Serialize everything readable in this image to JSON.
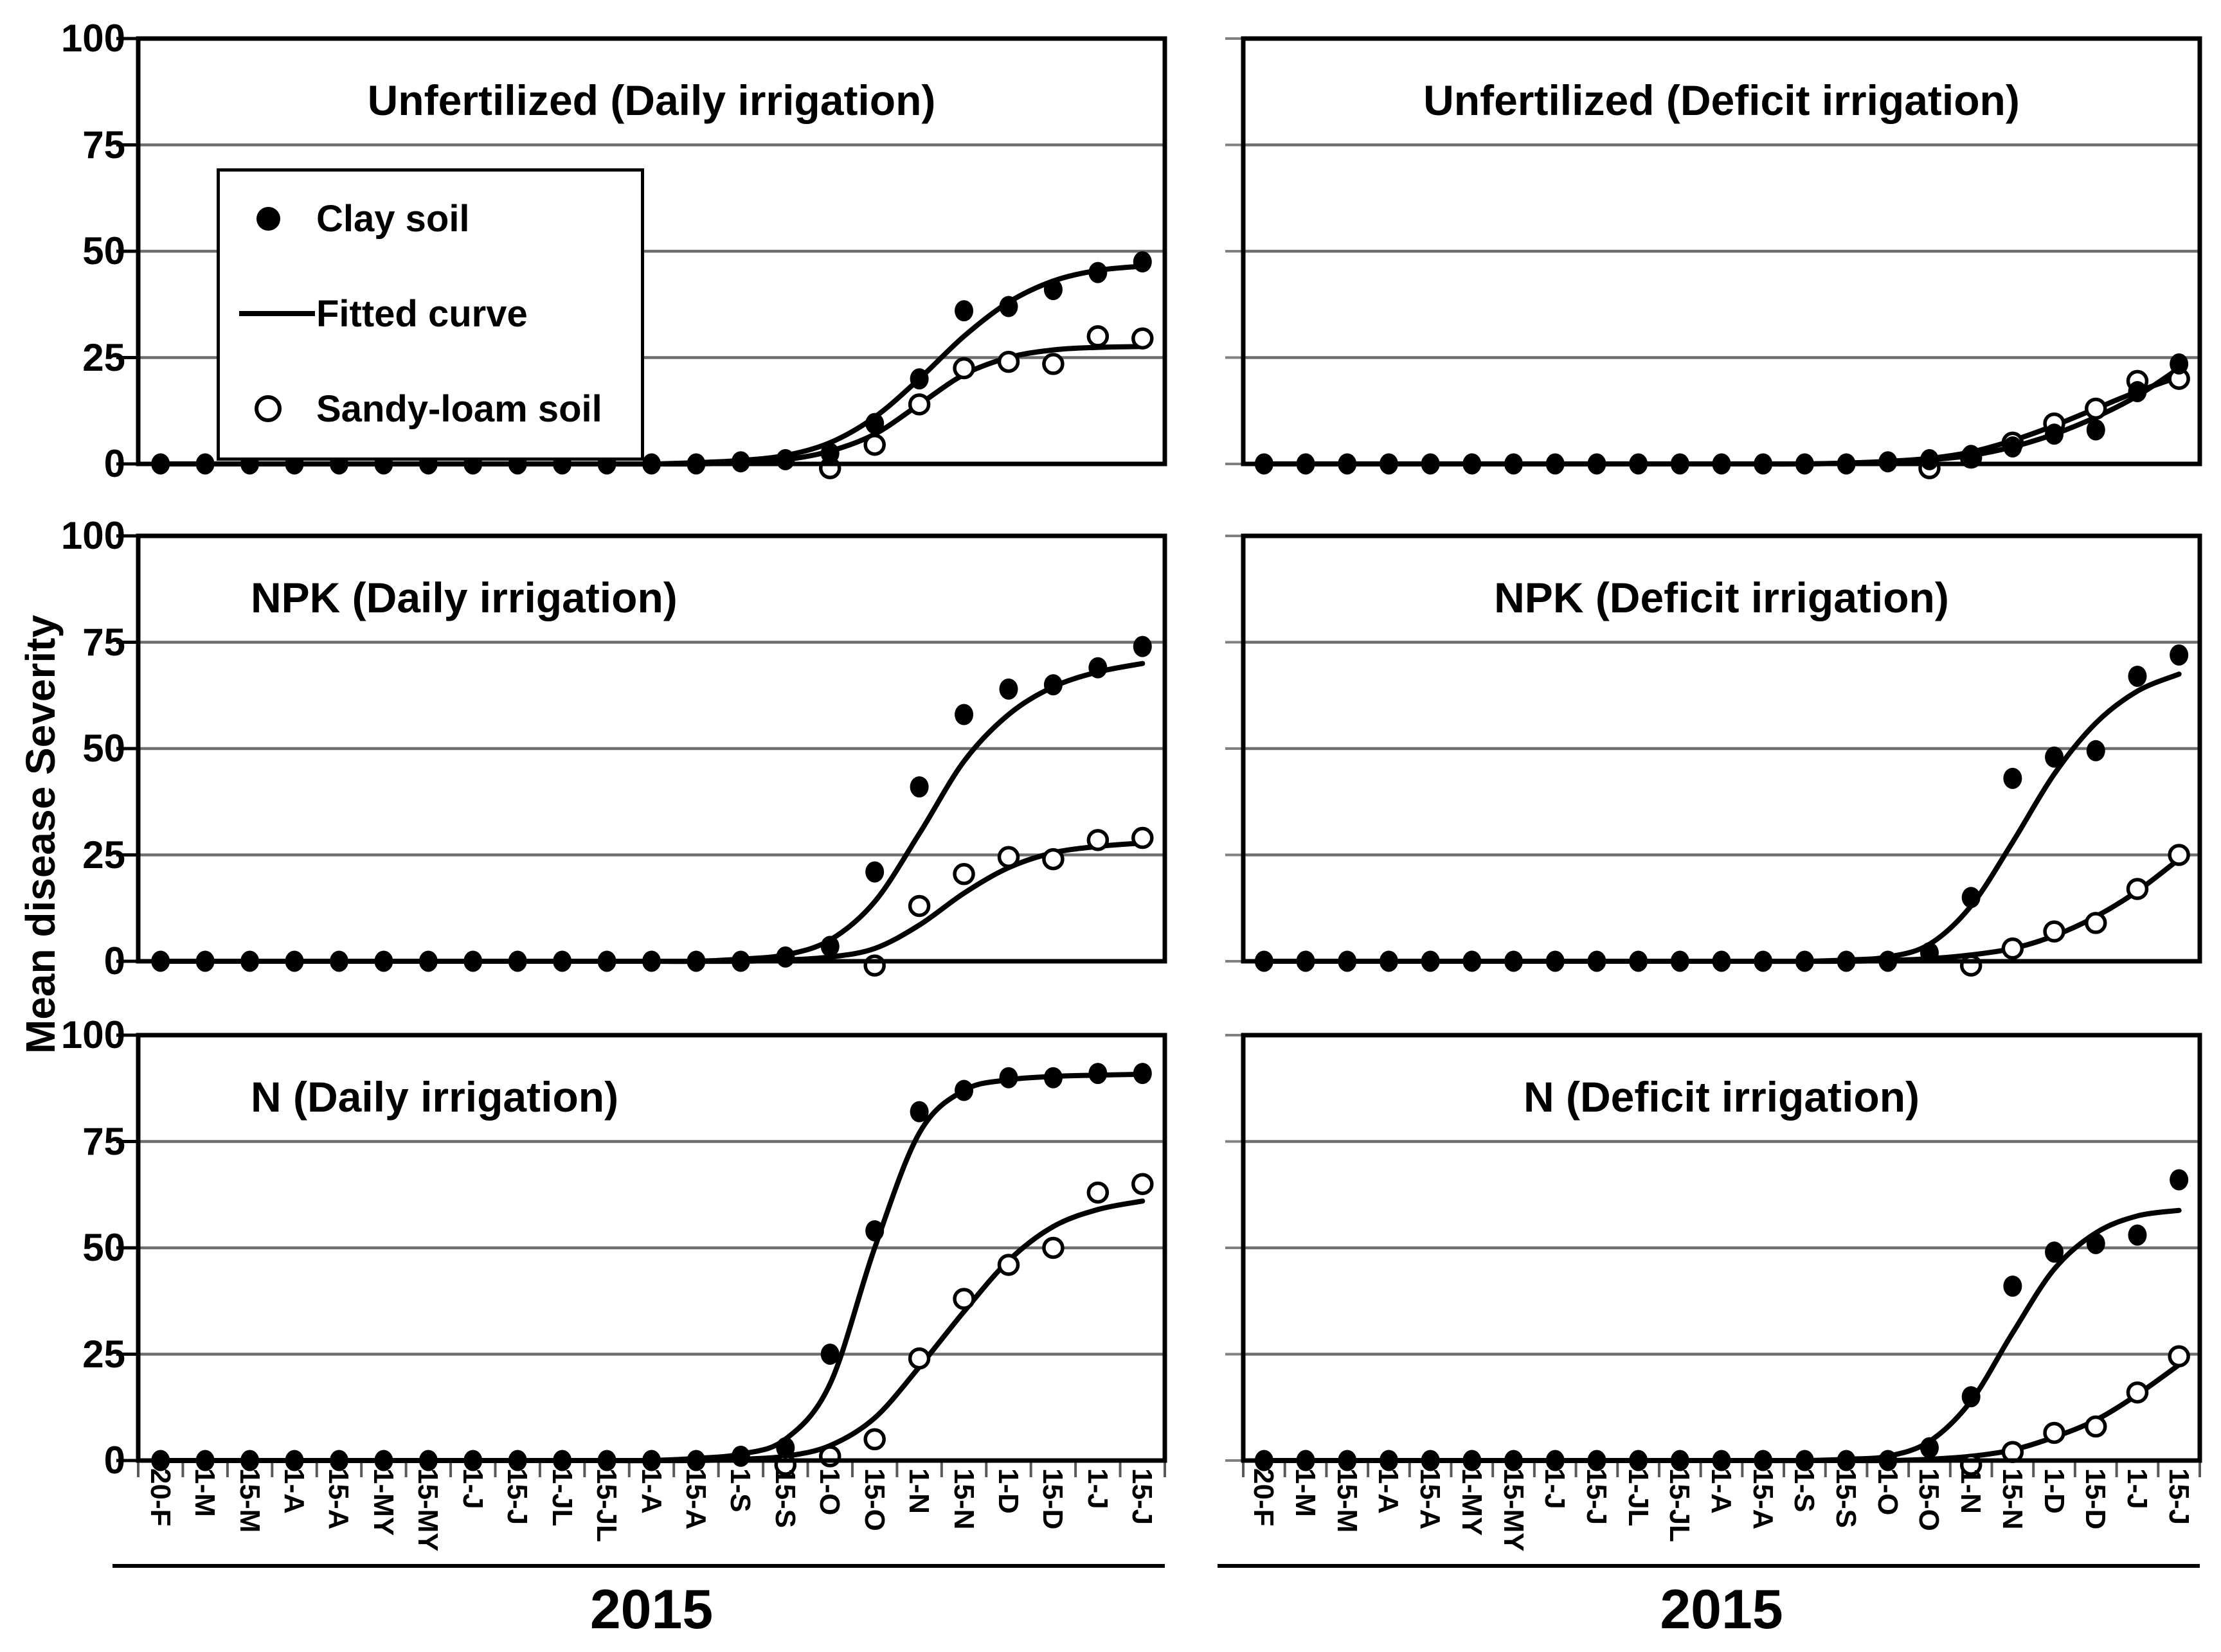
{
  "figure": {
    "ylabel": "Mean disease Severity",
    "x_year_label": "2015",
    "y_tick_labels": [
      "100",
      "75",
      "50",
      "25",
      "0"
    ],
    "legend": {
      "items": [
        {
          "marker": "filled-circle",
          "label": "Clay soil"
        },
        {
          "marker": "fitted-line",
          "label": "Fitted curve"
        },
        {
          "marker": "open-circle",
          "label": "Sandy-loam soil"
        }
      ]
    },
    "colors": {
      "ink": "#000000",
      "grid": "#6e6e6e",
      "minor_tick": "#595959"
    }
  },
  "chart_data": {
    "type": "scatter",
    "note": "2x3 panel grid; points are disease severity observations, lines are logistic fitted curves",
    "ylim": [
      0,
      100
    ],
    "y_ticks": [
      0,
      25,
      50,
      75,
      100
    ],
    "grid": "horizontal-only",
    "categories": [
      "20-F",
      "1-M",
      "15-M",
      "1-A",
      "15-A",
      "1-MY",
      "15-MY",
      "1-J",
      "15-J",
      "1-JL",
      "15-JL",
      "1-A",
      "15-A",
      "1-S",
      "15-S",
      "1-O",
      "15-O",
      "1-N",
      "15-N",
      "1-D",
      "15-D",
      "1-J",
      "15-J"
    ],
    "panels": [
      {
        "id": "unfertilized-daily",
        "title": "Unfertilized (Daily irrigation)",
        "row": 0,
        "col": 0,
        "title_align": "center",
        "has_legend": true,
        "series": {
          "clay": [
            0,
            0,
            0,
            0,
            0,
            0,
            0,
            0,
            0,
            0,
            0,
            0,
            0,
            0.5,
            1,
            2.5,
            9.5,
            20,
            36,
            37,
            41,
            45,
            47.5
          ],
          "sandy": [
            0,
            0,
            0,
            0,
            0,
            0,
            0,
            0,
            0,
            0,
            0,
            0,
            0,
            0,
            0,
            0,
            4.5,
            14,
            22.5,
            24,
            23.5,
            30,
            29.5
          ],
          "clay_fit": [
            0,
            0,
            0,
            0,
            0,
            0,
            0,
            0,
            0,
            0,
            0,
            0,
            0.3,
            0.8,
            2,
            5,
            11,
            20,
            30,
            38,
            43,
            45.5,
            46.5
          ],
          "sandy_fit": [
            0,
            0,
            0,
            0,
            0,
            0,
            0,
            0,
            0,
            0,
            0,
            0,
            0,
            0.3,
            1,
            3,
            7,
            14,
            21,
            25,
            26.8,
            27.4,
            27.6
          ]
        }
      },
      {
        "id": "unfertilized-deficit",
        "title": "Unfertilized (Deficit irrigation)",
        "row": 0,
        "col": 1,
        "title_align": "center",
        "has_legend": false,
        "series": {
          "clay": [
            0,
            0,
            0,
            0,
            0,
            0,
            0,
            0,
            0,
            0,
            0,
            0,
            0,
            0,
            0,
            0.5,
            1,
            2,
            4,
            7,
            8,
            17,
            23.5
          ],
          "sandy": [
            0,
            0,
            0,
            0,
            0,
            0,
            0,
            0,
            0,
            0,
            0,
            0,
            0,
            0,
            0,
            0,
            0,
            1.5,
            5,
            9.5,
            13,
            19.5,
            20
          ],
          "clay_fit": [
            0,
            0,
            0,
            0,
            0,
            0,
            0,
            0,
            0,
            0,
            0,
            0,
            0,
            0,
            0.2,
            0.5,
            1,
            2,
            4,
            7,
            11,
            16,
            22.5
          ],
          "sandy_fit": [
            0,
            0,
            0,
            0,
            0,
            0,
            0,
            0,
            0,
            0,
            0,
            0,
            0,
            0,
            0.2,
            0.6,
            1.3,
            2.8,
            5.5,
            9,
            13,
            17,
            20.5
          ]
        }
      },
      {
        "id": "npk-daily",
        "title": "NPK (Daily irrigation)",
        "row": 1,
        "col": 0,
        "title_align": "left",
        "has_legend": false,
        "series": {
          "clay": [
            0,
            0,
            0,
            0,
            0,
            0,
            0,
            0,
            0,
            0,
            0,
            0,
            0,
            0,
            1,
            3.5,
            21,
            41,
            58,
            64,
            65,
            69,
            74
          ],
          "sandy": [
            0,
            0,
            0,
            0,
            0,
            0,
            0,
            0,
            0,
            0,
            0,
            0,
            0,
            0,
            0,
            0,
            0,
            13,
            20.5,
            24.5,
            24,
            28.5,
            29
          ],
          "clay_fit": [
            0,
            0,
            0,
            0,
            0,
            0,
            0,
            0,
            0,
            0,
            0,
            0,
            0,
            0.5,
            1.5,
            5,
            14,
            30,
            47,
            58,
            64.5,
            68,
            70
          ],
          "sandy_fit": [
            0,
            0,
            0,
            0,
            0,
            0,
            0,
            0,
            0,
            0,
            0,
            0,
            0,
            0,
            0.3,
            1,
            3,
            8.5,
            16,
            22,
            25.5,
            27,
            27.8
          ]
        }
      },
      {
        "id": "npk-deficit",
        "title": "NPK (Deficit irrigation)",
        "row": 1,
        "col": 1,
        "title_align": "center",
        "has_legend": false,
        "series": {
          "clay": [
            0,
            0,
            0,
            0,
            0,
            0,
            0,
            0,
            0,
            0,
            0,
            0,
            0,
            0,
            0,
            0,
            2,
            15,
            43,
            48,
            49.5,
            67,
            72
          ],
          "sandy": [
            0,
            0,
            0,
            0,
            0,
            0,
            0,
            0,
            0,
            0,
            0,
            0,
            0,
            0,
            0,
            0,
            0,
            0,
            3,
            7,
            9,
            17,
            25
          ],
          "clay_fit": [
            0,
            0,
            0,
            0,
            0,
            0,
            0,
            0,
            0,
            0,
            0,
            0,
            0,
            0,
            0.3,
            1,
            4,
            13,
            28,
            44,
            56,
            63.5,
            67.5
          ],
          "sandy_fit": [
            0,
            0,
            0,
            0,
            0,
            0,
            0,
            0,
            0,
            0,
            0,
            0,
            0,
            0,
            0,
            0.2,
            0.6,
            1.5,
            3,
            6,
            10.5,
            16.5,
            24
          ]
        }
      },
      {
        "id": "n-daily",
        "title": "N (Daily irrigation)",
        "row": 2,
        "col": 0,
        "title_align": "left",
        "has_legend": false,
        "series": {
          "clay": [
            0,
            0,
            0,
            0,
            0,
            0,
            0,
            0,
            0,
            0,
            0,
            0,
            0,
            1,
            3,
            25,
            54,
            82,
            87,
            90,
            90,
            91,
            91
          ],
          "sandy": [
            0,
            0,
            0,
            0,
            0,
            0,
            0,
            0,
            0,
            0,
            0,
            0,
            0,
            0,
            0,
            1,
            5,
            24,
            38,
            46,
            50,
            63,
            65
          ],
          "clay_fit": [
            0,
            0,
            0,
            0,
            0,
            0,
            0,
            0,
            0,
            0,
            0,
            0,
            0.5,
            1.5,
            5,
            18,
            50,
            77,
            87,
            89.5,
            90.3,
            90.6,
            90.8
          ],
          "sandy_fit": [
            0,
            0,
            0,
            0,
            0,
            0,
            0,
            0,
            0,
            0,
            0,
            0,
            0,
            0.3,
            1,
            3.5,
            10,
            22,
            35,
            47,
            55,
            59,
            61
          ]
        }
      },
      {
        "id": "n-deficit",
        "title": "N (Deficit irrigation)",
        "row": 2,
        "col": 1,
        "title_align": "center",
        "has_legend": false,
        "series": {
          "clay": [
            0,
            0,
            0,
            0,
            0,
            0,
            0,
            0,
            0,
            0,
            0,
            0,
            0,
            0,
            0,
            0,
            3,
            15,
            41,
            49,
            51,
            53,
            66
          ],
          "sandy": [
            0,
            0,
            0,
            0,
            0,
            0,
            0,
            0,
            0,
            0,
            0,
            0,
            0,
            0,
            0,
            0,
            0,
            0,
            2,
            6.5,
            8,
            16,
            24.5
          ],
          "clay_fit": [
            0,
            0,
            0,
            0,
            0,
            0,
            0,
            0,
            0,
            0,
            0,
            0,
            0,
            0,
            0.3,
            1,
            4.5,
            14,
            30,
            45,
            53.5,
            57.5,
            58.8
          ],
          "sandy_fit": [
            0,
            0,
            0,
            0,
            0,
            0,
            0,
            0,
            0,
            0,
            0,
            0,
            0,
            0,
            0,
            0,
            0.3,
            1,
            2.5,
            5.5,
            9.5,
            15.5,
            22.5
          ]
        }
      }
    ]
  }
}
